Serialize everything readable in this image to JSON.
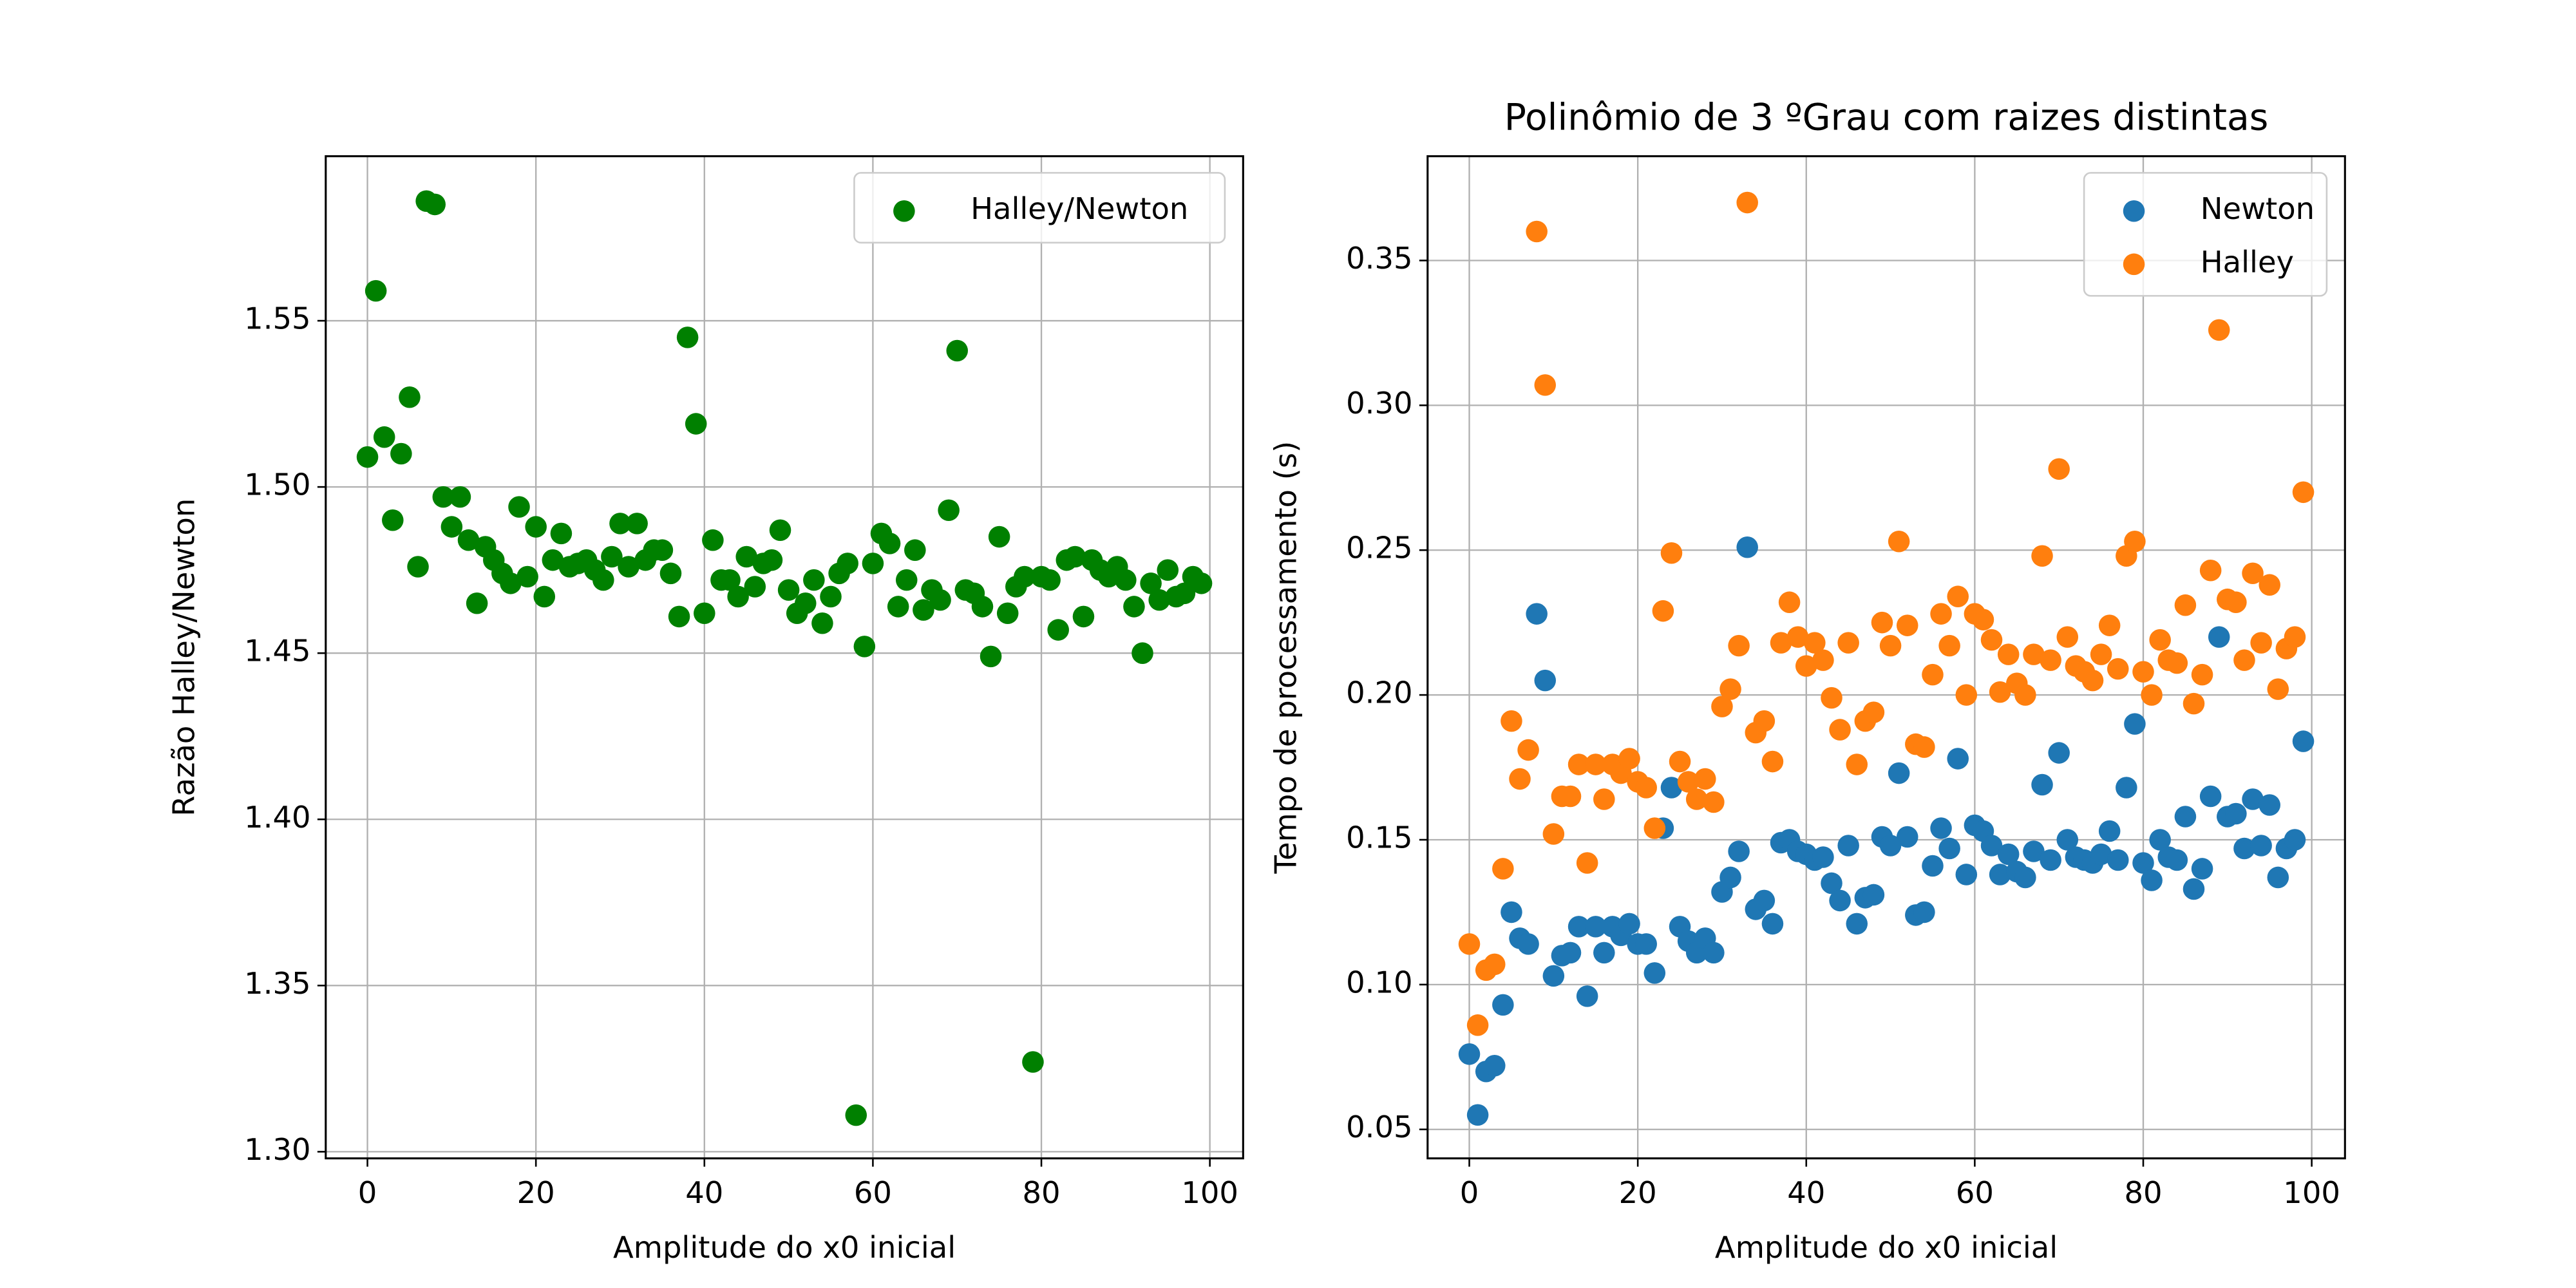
{
  "chart_data": [
    {
      "type": "scatter",
      "xlabel": "Amplitude do x0 inicial",
      "ylabel": "Razão Halley/Newton",
      "xlim": [
        -4.95,
        103.95
      ],
      "ylim": [
        1.298,
        1.5995
      ],
      "xticks": [
        0,
        20,
        40,
        60,
        80,
        100
      ],
      "yticks": [
        {
          "value": 1.3,
          "label": "1.30"
        },
        1.35,
        {
          "value": 1.4,
          "label": "1.40"
        },
        1.45,
        {
          "value": 1.5,
          "label": "1.50"
        },
        1.55
      ],
      "grid": true,
      "legend": "upper right",
      "x": [
        0,
        1,
        2,
        3,
        4,
        5,
        6,
        7,
        8,
        9,
        10,
        11,
        12,
        13,
        14,
        15,
        16,
        17,
        18,
        19,
        20,
        21,
        22,
        23,
        24,
        25,
        26,
        27,
        28,
        29,
        30,
        31,
        32,
        33,
        34,
        35,
        36,
        37,
        38,
        39,
        40,
        41,
        42,
        43,
        44,
        45,
        46,
        47,
        48,
        49,
        50,
        51,
        52,
        53,
        54,
        55,
        56,
        57,
        58,
        59,
        60,
        61,
        62,
        63,
        64,
        65,
        66,
        67,
        68,
        69,
        70,
        71,
        72,
        73,
        74,
        75,
        76,
        77,
        78,
        79,
        80,
        81,
        82,
        83,
        84,
        85,
        86,
        87,
        88,
        89,
        90,
        91,
        92,
        93,
        94,
        95,
        96,
        97,
        98,
        99
      ],
      "series": [
        {
          "name": "Halley/Newton",
          "color": "#008000",
          "values": [
            1.509,
            1.559,
            1.515,
            1.49,
            1.51,
            1.527,
            1.476,
            1.586,
            1.585,
            1.497,
            1.488,
            1.497,
            1.484,
            1.465,
            1.482,
            1.478,
            1.474,
            1.471,
            1.494,
            1.473,
            1.488,
            1.467,
            1.478,
            1.486,
            1.476,
            1.477,
            1.478,
            1.475,
            1.472,
            1.479,
            1.489,
            1.476,
            1.489,
            1.478,
            1.481,
            1.481,
            1.474,
            1.461,
            1.545,
            1.519,
            1.462,
            1.484,
            1.472,
            1.472,
            1.467,
            1.479,
            1.47,
            1.477,
            1.478,
            1.487,
            1.469,
            1.462,
            1.465,
            1.472,
            1.459,
            1.467,
            1.474,
            1.477,
            1.311,
            1.452,
            1.477,
            1.486,
            1.483,
            1.464,
            1.472,
            1.481,
            1.463,
            1.469,
            1.466,
            1.493,
            1.541,
            1.469,
            1.468,
            1.464,
            1.449,
            1.485,
            1.462,
            1.47,
            1.473,
            1.327,
            1.473,
            1.472,
            1.457,
            1.478,
            1.479,
            1.461,
            1.478,
            1.475,
            1.473,
            1.476,
            1.472,
            1.464,
            1.45,
            1.471,
            1.466,
            1.475,
            1.467,
            1.468,
            1.473,
            1.471
          ]
        }
      ]
    },
    {
      "type": "scatter",
      "title": "Polinômio de 3 ºGrau com raizes distintas",
      "xlabel": "Amplitude do x0 inicial",
      "ylabel": "Tempo de processamento (s)",
      "xlim": [
        -4.95,
        103.95
      ],
      "ylim": [
        0.04,
        0.386
      ],
      "xticks": [
        0,
        20,
        40,
        60,
        80,
        100
      ],
      "yticks": [
        0.05,
        {
          "value": 0.1,
          "label": "0.10"
        },
        0.15,
        {
          "value": 0.2,
          "label": "0.20"
        },
        0.25,
        {
          "value": 0.3,
          "label": "0.30"
        },
        0.35
      ],
      "grid": true,
      "legend": "upper right",
      "x": [
        0,
        1,
        2,
        3,
        4,
        5,
        6,
        7,
        8,
        9,
        10,
        11,
        12,
        13,
        14,
        15,
        16,
        17,
        18,
        19,
        20,
        21,
        22,
        23,
        24,
        25,
        26,
        27,
        28,
        29,
        30,
        31,
        32,
        33,
        34,
        35,
        36,
        37,
        38,
        39,
        40,
        41,
        42,
        43,
        44,
        45,
        46,
        47,
        48,
        49,
        50,
        51,
        52,
        53,
        54,
        55,
        56,
        57,
        58,
        59,
        60,
        61,
        62,
        63,
        64,
        65,
        66,
        67,
        68,
        69,
        70,
        71,
        72,
        73,
        74,
        75,
        76,
        77,
        78,
        79,
        80,
        81,
        82,
        83,
        84,
        85,
        86,
        87,
        88,
        89,
        90,
        91,
        92,
        93,
        94,
        95,
        96,
        97,
        98,
        99
      ],
      "series": [
        {
          "name": "Newton",
          "color": "#1f77b4",
          "values": [
            0.076,
            0.055,
            0.07,
            0.072,
            0.093,
            0.125,
            0.116,
            0.114,
            0.228,
            0.205,
            0.103,
            0.11,
            0.111,
            0.12,
            0.096,
            0.12,
            0.111,
            0.12,
            0.117,
            0.121,
            0.114,
            0.114,
            0.104,
            0.154,
            0.168,
            0.12,
            0.115,
            0.111,
            0.116,
            0.111,
            0.132,
            0.137,
            0.146,
            0.251,
            0.126,
            0.129,
            0.121,
            0.149,
            0.15,
            0.146,
            0.145,
            0.143,
            0.144,
            0.135,
            0.129,
            0.148,
            0.121,
            0.13,
            0.131,
            0.151,
            0.148,
            0.173,
            0.151,
            0.124,
            0.125,
            0.141,
            0.154,
            0.147,
            0.178,
            0.138,
            0.155,
            0.153,
            0.148,
            0.138,
            0.145,
            0.139,
            0.137,
            0.146,
            0.169,
            0.143,
            0.18,
            0.15,
            0.144,
            0.143,
            0.142,
            0.145,
            0.153,
            0.143,
            0.168,
            0.19,
            0.142,
            0.136,
            0.15,
            0.144,
            0.143,
            0.158,
            0.133,
            0.14,
            0.165,
            0.22,
            0.158,
            0.159,
            0.147,
            0.164,
            0.148,
            0.162,
            0.137,
            0.147,
            0.15,
            0.184
          ]
        },
        {
          "name": "Halley",
          "color": "#ff7f0e",
          "values": [
            0.114,
            0.086,
            0.105,
            0.107,
            0.14,
            0.191,
            0.171,
            0.181,
            0.36,
            0.307,
            0.152,
            0.165,
            0.165,
            0.176,
            0.142,
            0.176,
            0.164,
            0.176,
            0.173,
            0.178,
            0.17,
            0.168,
            0.154,
            0.229,
            0.249,
            0.177,
            0.17,
            0.164,
            0.171,
            0.163,
            0.196,
            0.202,
            0.217,
            0.37,
            0.187,
            0.191,
            0.177,
            0.218,
            0.232,
            0.22,
            0.21,
            0.218,
            0.212,
            0.199,
            0.188,
            0.218,
            0.176,
            0.191,
            0.194,
            0.225,
            0.217,
            0.253,
            0.224,
            0.183,
            0.182,
            0.207,
            0.228,
            0.217,
            0.234,
            0.2,
            0.228,
            0.226,
            0.219,
            0.201,
            0.214,
            0.204,
            0.2,
            0.214,
            0.248,
            0.212,
            0.278,
            0.22,
            0.21,
            0.208,
            0.205,
            0.214,
            0.224,
            0.209,
            0.248,
            0.253,
            0.208,
            0.2,
            0.219,
            0.212,
            0.211,
            0.231,
            0.197,
            0.207,
            0.243,
            0.326,
            0.233,
            0.232,
            0.212,
            0.242,
            0.218,
            0.238,
            0.202,
            0.216,
            0.22,
            0.27
          ]
        }
      ]
    }
  ]
}
